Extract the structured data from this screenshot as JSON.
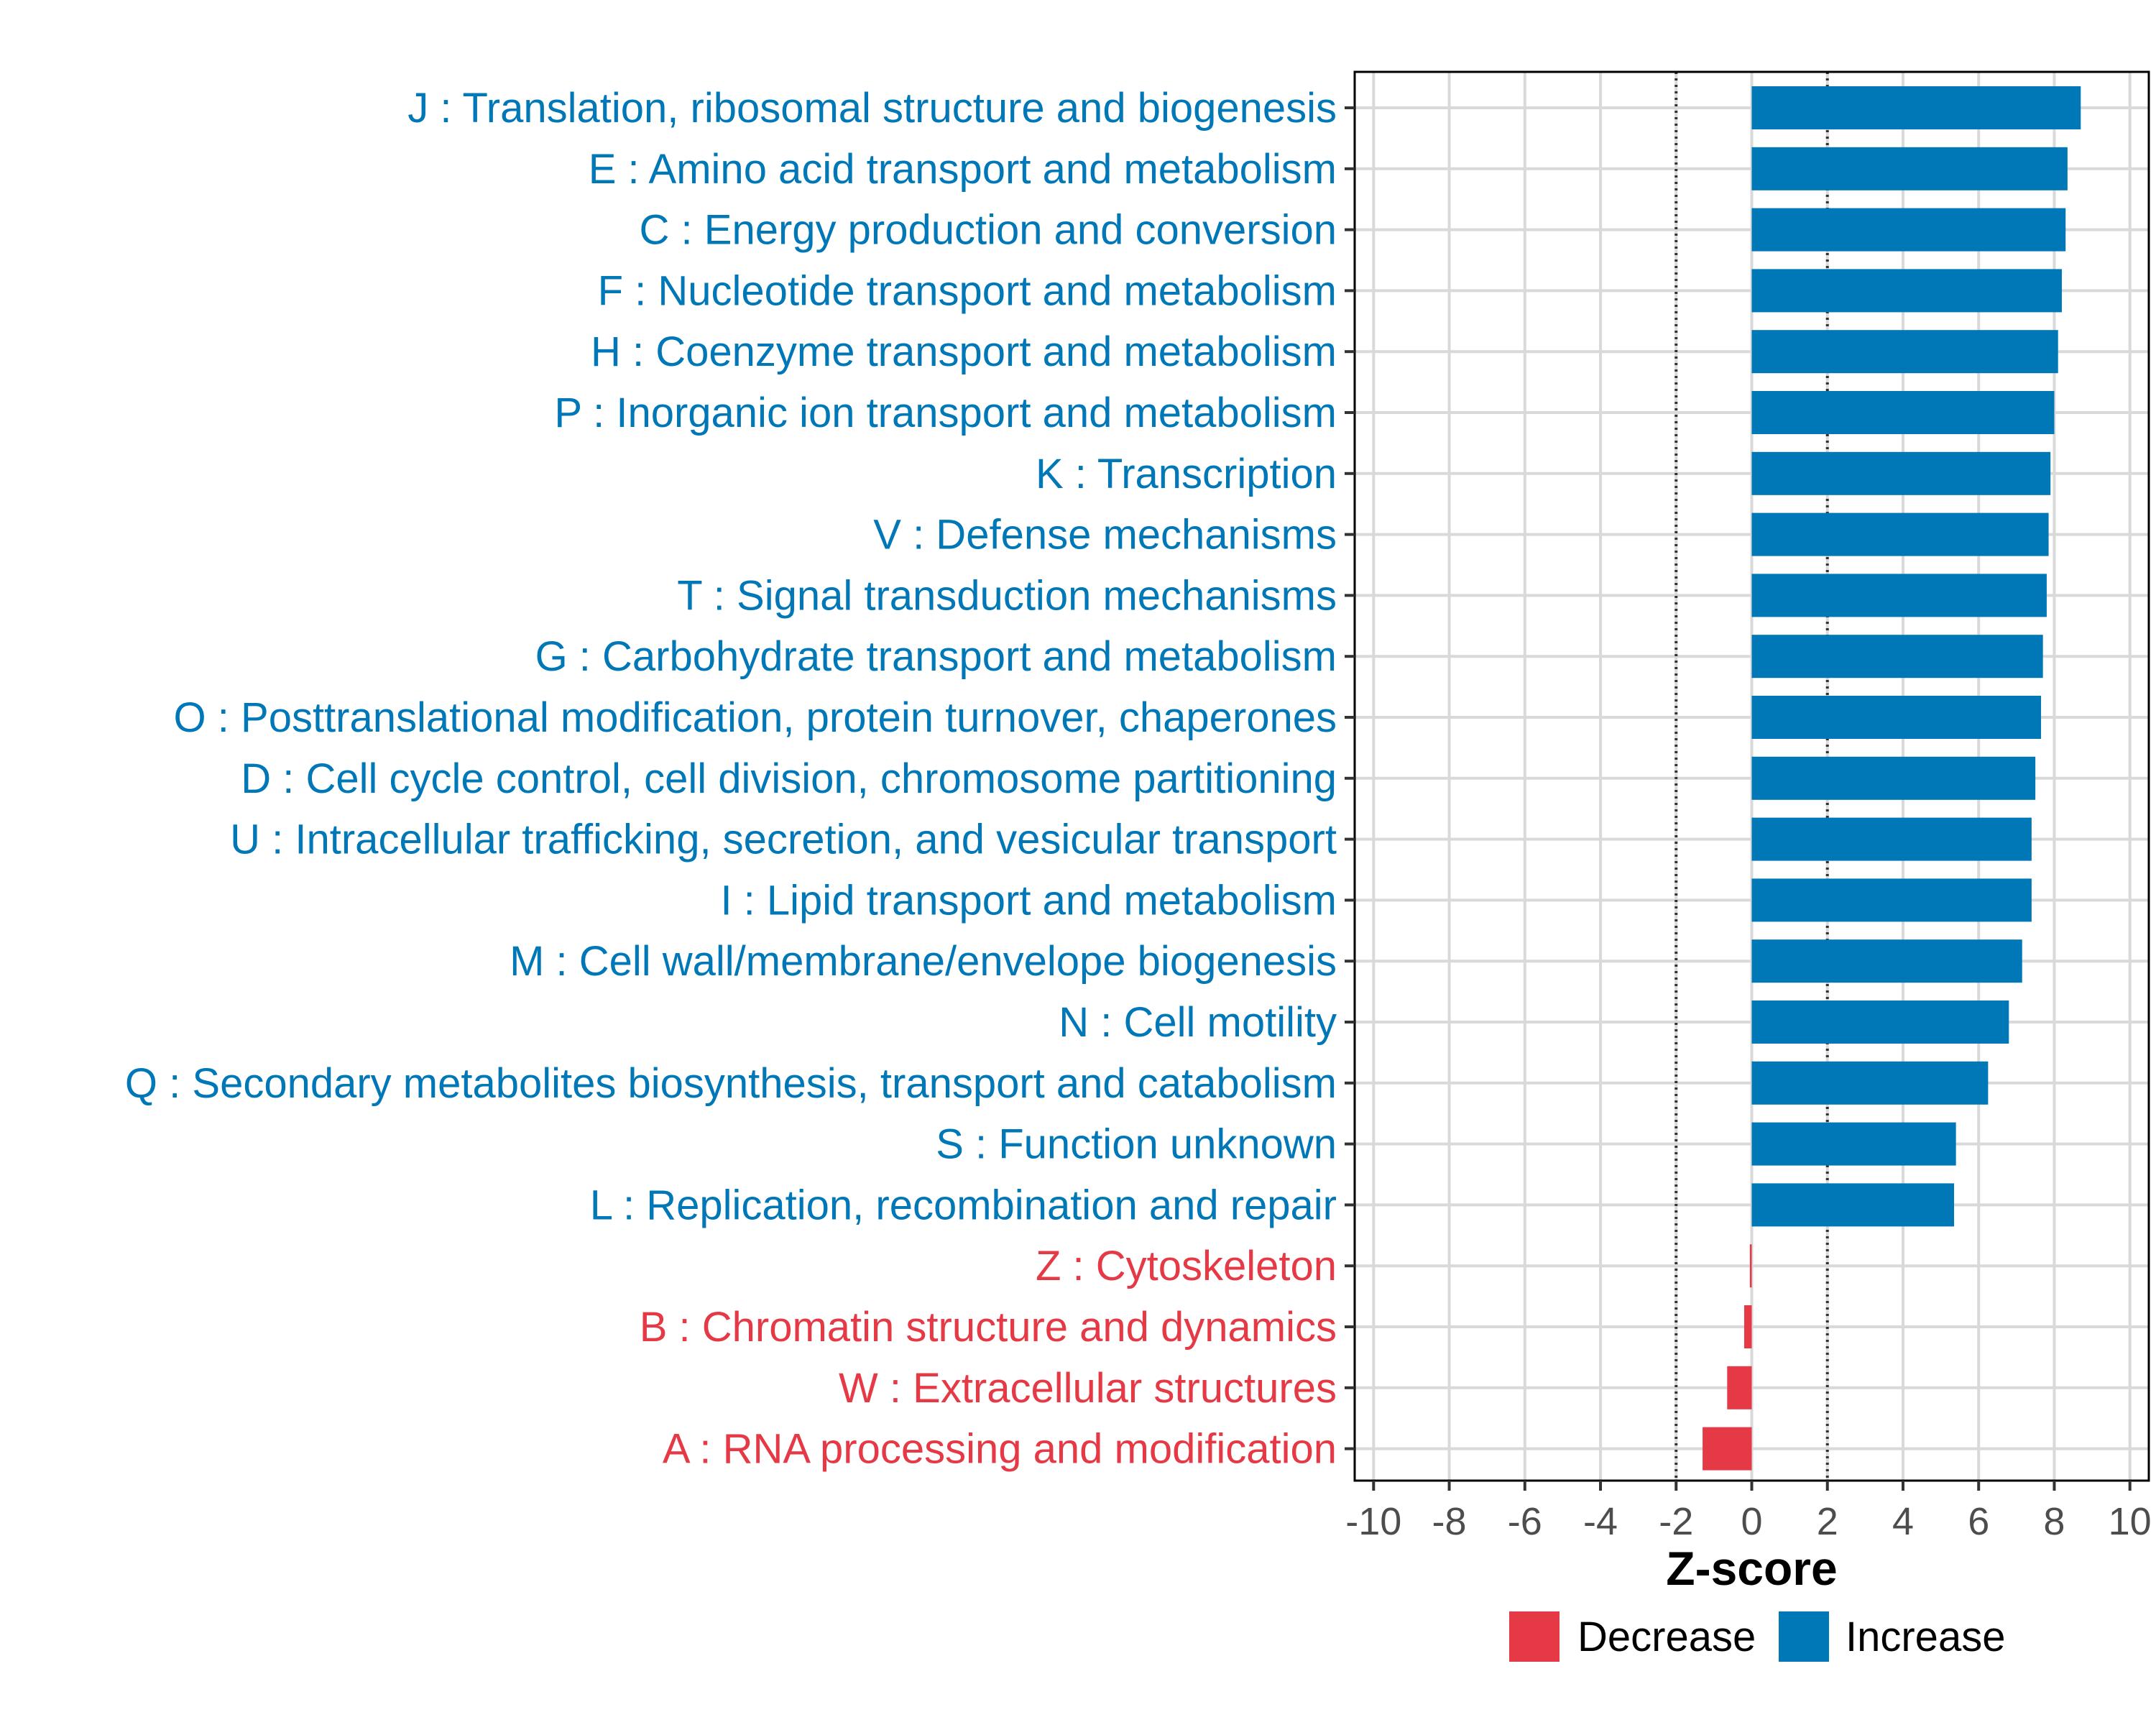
{
  "chart_data": {
    "type": "bar",
    "orientation": "horizontal",
    "xlabel": "Z-score",
    "ylabel": "",
    "xlim": [
      -10.5,
      10.5
    ],
    "x_ticks": [
      -10,
      -8,
      -6,
      -4,
      -2,
      0,
      2,
      4,
      6,
      8,
      10
    ],
    "x_tick_labels": [
      "-10",
      "-8",
      "-6",
      "-4",
      "-2",
      "0",
      "2",
      "4",
      "6",
      "8",
      "10"
    ],
    "reference_lines": [
      -2,
      2
    ],
    "categories": [
      "J : Translation, ribosomal structure and biogenesis",
      "E : Amino acid transport and metabolism",
      "C : Energy production and conversion",
      "F : Nucleotide transport and metabolism",
      "H : Coenzyme transport and metabolism",
      "P : Inorganic ion transport and metabolism",
      "K : Transcription",
      "V : Defense mechanisms",
      "T : Signal transduction mechanisms",
      "G : Carbohydrate transport and metabolism",
      "O : Posttranslational modification, protein turnover, chaperones",
      "D : Cell cycle control, cell division, chromosome partitioning",
      "U : Intracellular trafficking, secretion, and vesicular transport",
      "I : Lipid transport and metabolism",
      "M : Cell wall/membrane/envelope biogenesis",
      "N : Cell motility",
      "Q : Secondary metabolites biosynthesis, transport and catabolism",
      "S : Function unknown",
      "L : Replication, recombination and repair",
      "Z : Cytoskeleton",
      "B : Chromatin structure and dynamics",
      "W : Extracellular structures",
      "A : RNA processing and modification"
    ],
    "values": [
      8.7,
      8.35,
      8.3,
      8.2,
      8.1,
      8.0,
      7.9,
      7.85,
      7.8,
      7.7,
      7.65,
      7.5,
      7.4,
      7.4,
      7.15,
      6.8,
      6.25,
      5.4,
      5.35,
      -0.05,
      -0.2,
      -0.65,
      -1.3
    ],
    "groups": [
      "Increase",
      "Increase",
      "Increase",
      "Increase",
      "Increase",
      "Increase",
      "Increase",
      "Increase",
      "Increase",
      "Increase",
      "Increase",
      "Increase",
      "Increase",
      "Increase",
      "Increase",
      "Increase",
      "Increase",
      "Increase",
      "Increase",
      "Decrease",
      "Decrease",
      "Decrease",
      "Decrease"
    ],
    "legend": {
      "position": "bottom",
      "entries": [
        {
          "label": "Decrease",
          "color": "#E63946"
        },
        {
          "label": "Increase",
          "color": "#0077B6"
        }
      ]
    },
    "grid": true,
    "colors": {
      "Increase": "#0077B6",
      "Decrease": "#E63946"
    }
  }
}
